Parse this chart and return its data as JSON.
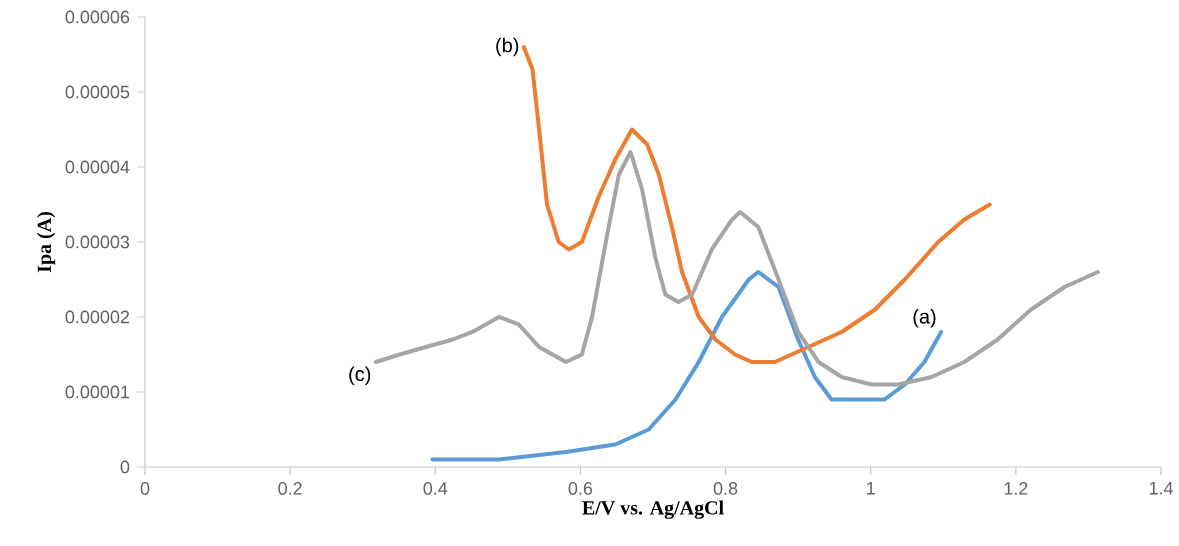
{
  "chart_data": {
    "type": "line",
    "xlabel": "E/V vs. Ag/AgCl",
    "ylabel": "Ipa (A)",
    "xlim": [
      0,
      1.4
    ],
    "ylim": [
      0,
      6e-05
    ],
    "xticks": [
      0,
      0.2,
      0.4,
      0.6,
      0.8,
      1,
      1.2,
      1.4
    ],
    "yticks": [
      0,
      {
        "value": 1e-05,
        "label": "0.00001"
      },
      {
        "value": 2e-05,
        "label": "0.00002"
      },
      {
        "value": 3e-05,
        "label": "0.00003"
      },
      {
        "value": 4e-05,
        "label": "0.00004"
      },
      {
        "value": 5e-05,
        "label": "0.00005"
      },
      {
        "value": 6e-05,
        "label": "0.00006"
      }
    ],
    "grid": false,
    "legend": false,
    "marker": "none",
    "line_style": "solid",
    "series": [
      {
        "color": "#5b9bd5",
        "x": [
          0.396,
          0.488,
          0.58,
          0.648,
          0.694,
          0.731,
          0.763,
          0.795,
          0.832,
          0.845,
          0.873,
          0.9,
          0.923,
          0.946,
          0.983,
          1.019,
          1.047,
          1.074,
          1.097
        ],
        "values": [
          1e-06,
          1e-06,
          2e-06,
          3e-06,
          5e-06,
          9e-06,
          1.4e-05,
          2e-05,
          2.5e-05,
          2.6e-05,
          2.4e-05,
          1.7e-05,
          1.2e-05,
          9e-06,
          9e-06,
          9e-06,
          1.1e-05,
          1.4e-05,
          1.8e-05
        ]
      },
      {
        "color": "#ed7d31",
        "x": [
          0.522,
          0.534,
          0.543,
          0.554,
          0.57,
          0.584,
          0.602,
          0.625,
          0.648,
          0.671,
          0.692,
          0.708,
          0.726,
          0.74,
          0.763,
          0.786,
          0.813,
          0.836,
          0.868,
          0.914,
          0.96,
          1.006,
          1.047,
          1.093,
          1.129,
          1.164
        ],
        "values": [
          5.6e-05,
          5.3e-05,
          4.5e-05,
          3.5e-05,
          3e-05,
          2.9e-05,
          3e-05,
          3.6e-05,
          4.1e-05,
          4.5e-05,
          4.3e-05,
          3.9e-05,
          3.2e-05,
          2.6e-05,
          2e-05,
          1.7e-05,
          1.5e-05,
          1.4e-05,
          1.4e-05,
          1.6e-05,
          1.8e-05,
          2.1e-05,
          2.5e-05,
          3e-05,
          3.3e-05,
          3.5e-05
        ]
      },
      {
        "color": "#a5a5a5",
        "x": [
          0.318,
          0.351,
          0.387,
          0.424,
          0.451,
          0.488,
          0.515,
          0.543,
          0.58,
          0.602,
          0.616,
          0.635,
          0.653,
          0.669,
          0.685,
          0.703,
          0.717,
          0.735,
          0.754,
          0.781,
          0.809,
          0.82,
          0.845,
          0.873,
          0.9,
          0.928,
          0.96,
          1.001,
          1.038,
          1.084,
          1.129,
          1.175,
          1.221,
          1.267,
          1.313
        ],
        "values": [
          1.4e-05,
          1.5e-05,
          1.6e-05,
          1.7e-05,
          1.8e-05,
          2e-05,
          1.9e-05,
          1.6e-05,
          1.4e-05,
          1.5e-05,
          2e-05,
          3e-05,
          3.9e-05,
          4.2e-05,
          3.7e-05,
          2.8e-05,
          2.3e-05,
          2.2e-05,
          2.3e-05,
          2.9e-05,
          3.3e-05,
          3.4e-05,
          3.2e-05,
          2.5e-05,
          1.8e-05,
          1.4e-05,
          1.2e-05,
          1.1e-05,
          1.1e-05,
          1.2e-05,
          1.4e-05,
          1.7e-05,
          2.1e-05,
          2.4e-05,
          2.6e-05
        ]
      }
    ],
    "annotations": [
      {
        "text": "(a)",
        "x": 1.097,
        "y": 1.8e-05
      },
      {
        "text": "(b)",
        "x": 0.522,
        "y": 5.6e-05
      },
      {
        "text": "(c)",
        "x": 0.318,
        "y": 1.4e-05
      }
    ]
  }
}
